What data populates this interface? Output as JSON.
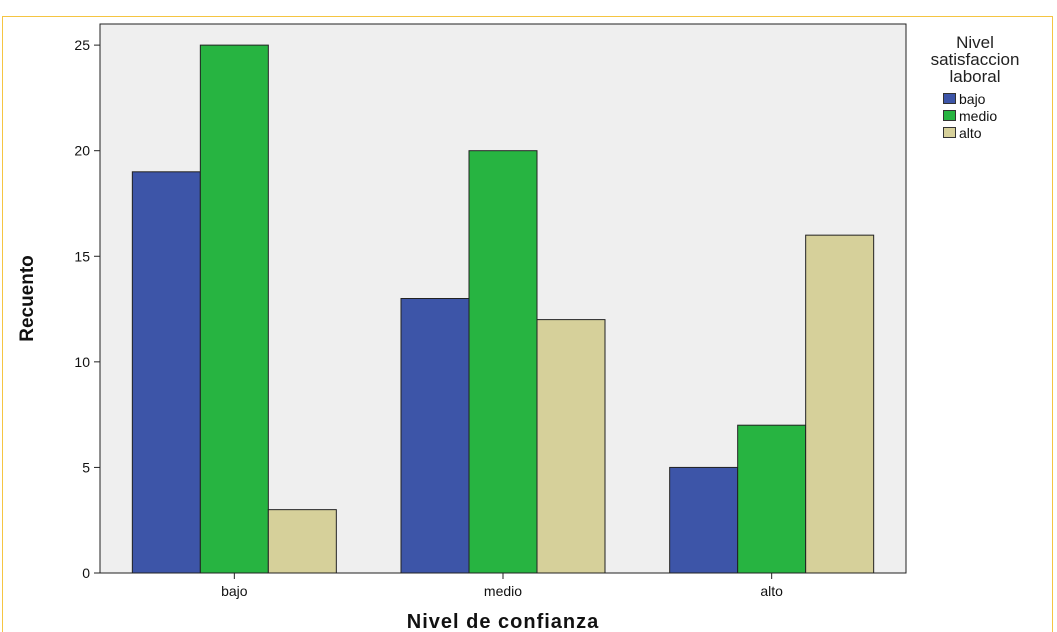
{
  "chart_data": {
    "type": "bar",
    "categories": [
      "bajo",
      "medio",
      "alto"
    ],
    "series": [
      {
        "name": "bajo",
        "values": [
          19,
          13,
          5
        ],
        "color": "#3d55a8"
      },
      {
        "name": "medio",
        "values": [
          25,
          20,
          7
        ],
        "color": "#27b441"
      },
      {
        "name": "alto",
        "values": [
          3,
          12,
          16
        ],
        "color": "#d6d09a"
      }
    ],
    "xlabel": "Nivel de confianza",
    "ylabel": "Recuento",
    "ylim": [
      0,
      26
    ],
    "yticks": [
      0,
      5,
      10,
      15,
      20,
      25
    ],
    "grid": false,
    "legend_position": "right",
    "legend_title": "Nivel\nsatisfaccion\nlaboral",
    "colors": {
      "plot_background": "#efefef",
      "frame_border": "#f5c542"
    }
  }
}
